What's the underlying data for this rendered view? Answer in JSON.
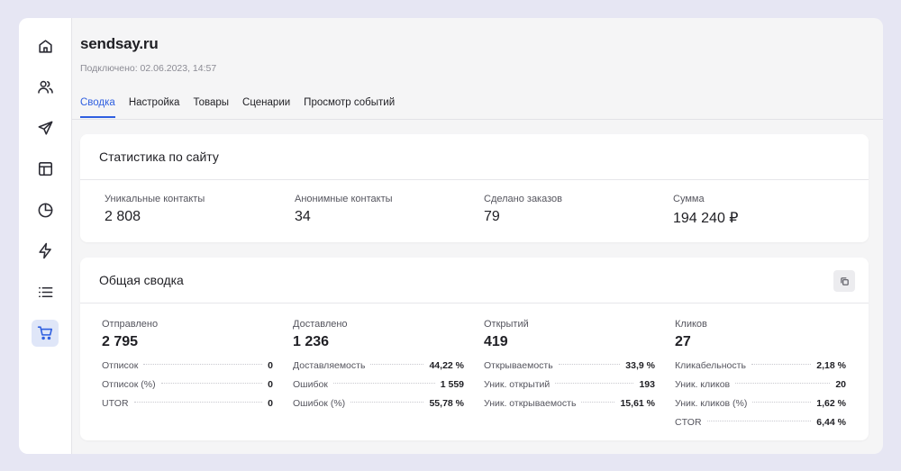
{
  "sidebar": {
    "items": [
      {
        "icon": "home-icon"
      },
      {
        "icon": "users-icon"
      },
      {
        "icon": "send-icon"
      },
      {
        "icon": "layout-icon"
      },
      {
        "icon": "pie-chart-icon"
      },
      {
        "icon": "lightning-icon"
      },
      {
        "icon": "list-icon"
      },
      {
        "icon": "cart-icon",
        "active": true
      }
    ],
    "accent": "#2f5fe0"
  },
  "header": {
    "title": "sendsay.ru",
    "connected": "Подключено: 02.06.2023, 14:57"
  },
  "tabs": [
    {
      "label": "Сводка",
      "active": true
    },
    {
      "label": "Настройка"
    },
    {
      "label": "Товары"
    },
    {
      "label": "Сценарии"
    },
    {
      "label": "Просмотр событий"
    }
  ],
  "site_stats": {
    "title": "Статистика по сайту",
    "items": [
      {
        "label": "Уникальные контакты",
        "value": "2 808"
      },
      {
        "label": "Анонимные контакты",
        "value": "34"
      },
      {
        "label": "Сделано заказов",
        "value": "79"
      },
      {
        "label": "Сумма",
        "value": "194 240 ₽"
      }
    ]
  },
  "summary": {
    "title": "Общая сводка",
    "columns": [
      {
        "label": "Отправлено",
        "value": "2 795",
        "rows": [
          {
            "label": "Отписок",
            "value": "0"
          },
          {
            "label": "Отписок (%)",
            "value": "0"
          },
          {
            "label": "UTOR",
            "value": "0"
          }
        ]
      },
      {
        "label": "Доставлено",
        "value": "1 236",
        "rows": [
          {
            "label": "Доставляемость",
            "value": "44,22 %"
          },
          {
            "label": "Ошибок",
            "value": "1 559"
          },
          {
            "label": "Ошибок (%)",
            "value": "55,78 %"
          }
        ]
      },
      {
        "label": "Открытий",
        "value": "419",
        "rows": [
          {
            "label": "Открываемость",
            "value": "33,9 %"
          },
          {
            "label": "Уник. открытий",
            "value": "193"
          },
          {
            "label": "Уник. открываемость",
            "value": "15,61 %"
          }
        ]
      },
      {
        "label": "Кликов",
        "value": "27",
        "rows": [
          {
            "label": "Кликабельность",
            "value": "2,18 %"
          },
          {
            "label": "Уник. кликов",
            "value": "20"
          },
          {
            "label": "Уник. кликов (%)",
            "value": "1,62 %"
          },
          {
            "label": "CTOR",
            "value": "6,44 %"
          }
        ]
      }
    ]
  }
}
